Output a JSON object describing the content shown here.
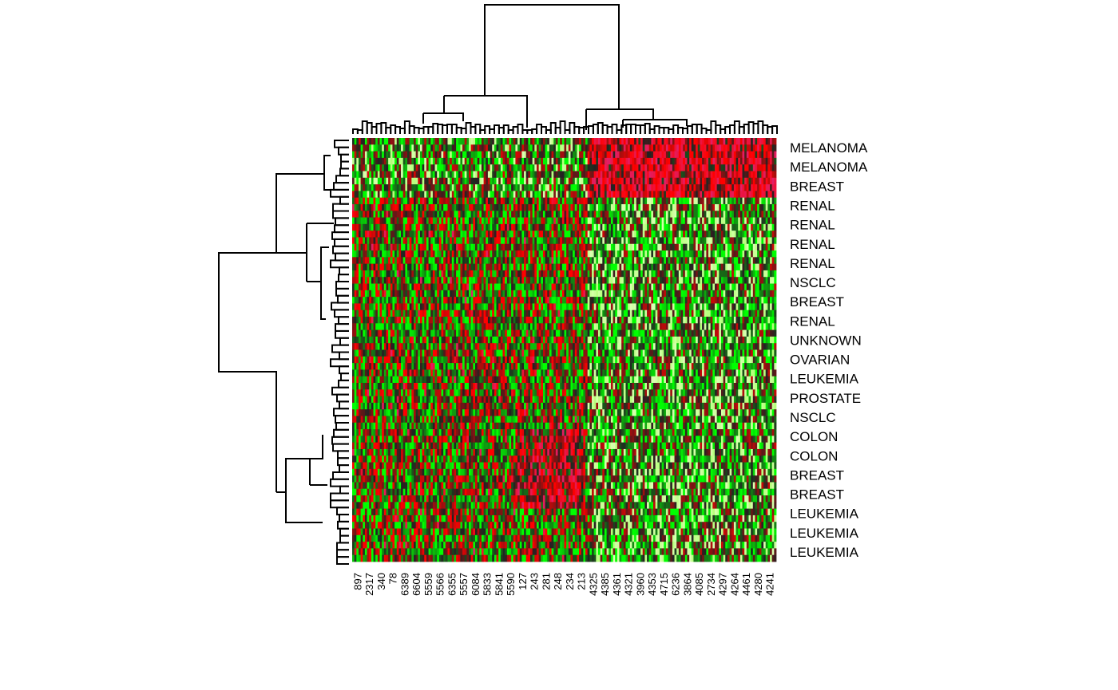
{
  "chart_data": {
    "type": "heatmap",
    "title": "",
    "xlabel": "",
    "ylabel": "",
    "row_labels": [
      "MELANOMA",
      "MELANOMA",
      "BREAST",
      "RENAL",
      "RENAL",
      "RENAL",
      "RENAL",
      "NSCLC",
      "BREAST",
      "RENAL",
      "UNKNOWN",
      "OVARIAN",
      "LEUKEMIA",
      "PROSTATE",
      "NSCLC",
      "COLON",
      "COLON",
      "BREAST",
      "BREAST",
      "LEUKEMIA",
      "LEUKEMIA",
      "LEUKEMIA"
    ],
    "col_labels": [
      "897",
      "2317",
      "340",
      "78",
      "6389",
      "6604",
      "5559",
      "5566",
      "6355",
      "5557",
      "6084",
      "5833",
      "5841",
      "5590",
      "127",
      "243",
      "281",
      "248",
      "234",
      "213",
      "4325",
      "4385",
      "4361",
      "4321",
      "3960",
      "4353",
      "4715",
      "6236",
      "3864",
      "4085",
      "2734",
      "4297",
      "4264",
      "4461",
      "4280",
      "4241"
    ],
    "color_scale": {
      "low": "#00ff00",
      "mid": "#222222",
      "high": "#ff0000",
      "accent": "#e0206a"
    },
    "dendrogram_rows": true,
    "dendrogram_cols": true,
    "grid": false
  }
}
